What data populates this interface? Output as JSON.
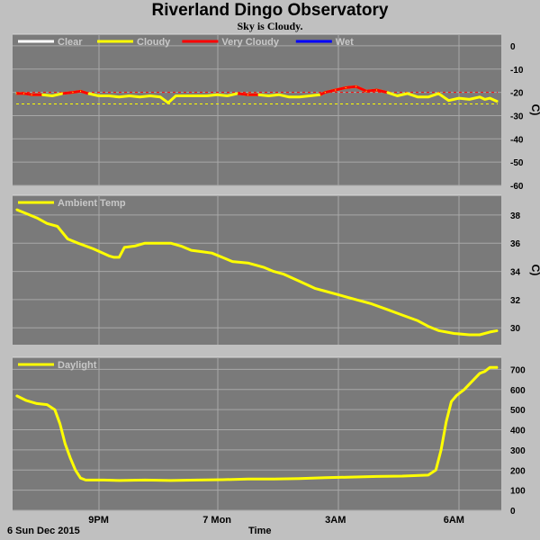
{
  "header": {
    "title": "Riverland Dingo Observatory",
    "subtitle": "Sky is Cloudy."
  },
  "footer": {
    "date_label": "6 Sun Dec 2015",
    "time_label": "Time"
  },
  "colors": {
    "page_bg": "#c0c0c0",
    "panel_bg": "#7a7a7a",
    "grid": "#a8a8a8",
    "clear": "#ffffff",
    "cloudy": "#ffff00",
    "very_cloudy": "#ff0000",
    "wet": "#0000ff"
  },
  "chart_data": [
    {
      "type": "line",
      "name": "sky",
      "legend": [
        {
          "label": "Clear",
          "color": "#ffffff"
        },
        {
          "label": "Cloudy",
          "color": "#ffff00"
        },
        {
          "label": "Very Cloudy",
          "color": "#ff0000"
        },
        {
          "label": "Wet",
          "color": "#0000ff"
        }
      ],
      "ylabel": "C)",
      "ylim": [
        -60,
        5
      ],
      "yticks": [
        0,
        -10,
        -20,
        -30,
        -40,
        -50,
        -60
      ],
      "xlim": [
        0,
        9.35
      ],
      "grid": true,
      "threshold_lines": [
        {
          "value": -20,
          "color": "#ff0000"
        },
        {
          "value": -25,
          "color": "#ffff00"
        }
      ],
      "series": [
        {
          "x": [
            0,
            0.15,
            0.3,
            0.5,
            0.7,
            0.9,
            1.1,
            1.25,
            1.4,
            1.6,
            1.8,
            2.0,
            2.2,
            2.4,
            2.6,
            2.8,
            2.95,
            3.1,
            3.3,
            3.5,
            3.7,
            3.9,
            4.1,
            4.3,
            4.5,
            4.7,
            4.9,
            5.1,
            5.3,
            5.5,
            5.7,
            5.9,
            6.0,
            6.2,
            6.4,
            6.6,
            6.8,
            7.0,
            7.2,
            7.4,
            7.6,
            7.8,
            8.0,
            8.2,
            8.4,
            8.6,
            8.8,
            9.0,
            9.1,
            9.2,
            9.35
          ],
          "y": [
            -20.5,
            -20.5,
            -21,
            -21,
            -21.5,
            -20.5,
            -20,
            -19.5,
            -20.5,
            -21.5,
            -21.5,
            -22,
            -21.5,
            -22,
            -21.5,
            -22,
            -24.5,
            -21.5,
            -21.5,
            -21.5,
            -21.5,
            -21,
            -21.5,
            -20.5,
            -21,
            -21,
            -21.5,
            -21,
            -22,
            -22,
            -21.5,
            -21,
            -20,
            -19,
            -18,
            -17.5,
            -19.5,
            -19,
            -20,
            -21.5,
            -20.5,
            -22,
            -22,
            -20.5,
            -23.5,
            -22.5,
            -23,
            -22,
            -23,
            -22.5,
            -24
          ]
        }
      ]
    },
    {
      "type": "line",
      "name": "ambient",
      "legend": [
        {
          "label": "Ambient Temp",
          "color": "#ffff00"
        }
      ],
      "ylabel": "C)",
      "ylim": [
        28.8,
        39.4
      ],
      "yticks": [
        38,
        36,
        34,
        32,
        30
      ],
      "xlim": [
        0,
        9.35
      ],
      "grid": true,
      "series": [
        {
          "x": [
            0,
            0.2,
            0.4,
            0.6,
            0.8,
            1.0,
            1.2,
            1.5,
            1.8,
            1.9,
            2.0,
            2.1,
            2.3,
            2.5,
            2.8,
            3.0,
            3.2,
            3.4,
            3.6,
            3.8,
            4.0,
            4.2,
            4.5,
            4.8,
            5.0,
            5.2,
            5.5,
            5.8,
            6.0,
            6.3,
            6.6,
            6.9,
            7.2,
            7.5,
            7.8,
            8.0,
            8.2,
            8.5,
            8.8,
            9.0,
            9.2,
            9.35
          ],
          "y": [
            38.4,
            38.1,
            37.8,
            37.4,
            37.2,
            36.3,
            36.0,
            35.6,
            35.1,
            35.0,
            35.0,
            35.7,
            35.8,
            36.0,
            36.0,
            36.0,
            35.8,
            35.5,
            35.4,
            35.3,
            35.0,
            34.7,
            34.6,
            34.3,
            34.0,
            33.8,
            33.3,
            32.8,
            32.6,
            32.3,
            32.0,
            31.7,
            31.3,
            30.9,
            30.5,
            30.1,
            29.8,
            29.6,
            29.5,
            29.5,
            29.7,
            29.8
          ]
        }
      ]
    },
    {
      "type": "line",
      "name": "daylight",
      "legend": [
        {
          "label": "Daylight",
          "color": "#ffff00"
        }
      ],
      "ylim": [
        0,
        760
      ],
      "yticks": [
        700,
        600,
        500,
        400,
        300,
        200,
        100,
        0
      ],
      "xlim": [
        0,
        9.35
      ],
      "xticks": [
        {
          "x": 1.6,
          "label": "9PM"
        },
        {
          "x": 3.9,
          "label": "7 Mon"
        },
        {
          "x": 6.2,
          "label": "3AM"
        },
        {
          "x": 8.5,
          "label": "6AM"
        }
      ],
      "grid": true,
      "series": [
        {
          "x": [
            0,
            0.2,
            0.4,
            0.6,
            0.75,
            0.85,
            0.95,
            1.05,
            1.15,
            1.25,
            1.35,
            1.5,
            1.7,
            2.0,
            2.5,
            3.0,
            3.5,
            4.0,
            4.5,
            5.0,
            5.5,
            6.0,
            6.5,
            7.0,
            7.5,
            8.0,
            8.15,
            8.25,
            8.35,
            8.45,
            8.55,
            8.7,
            8.85,
            9.0,
            9.1,
            9.2,
            9.35
          ],
          "y": [
            570,
            545,
            530,
            525,
            500,
            430,
            330,
            260,
            200,
            160,
            150,
            150,
            150,
            148,
            150,
            148,
            150,
            152,
            155,
            155,
            158,
            162,
            165,
            168,
            170,
            175,
            200,
            300,
            440,
            540,
            570,
            600,
            640,
            680,
            690,
            710,
            710
          ]
        }
      ]
    }
  ]
}
